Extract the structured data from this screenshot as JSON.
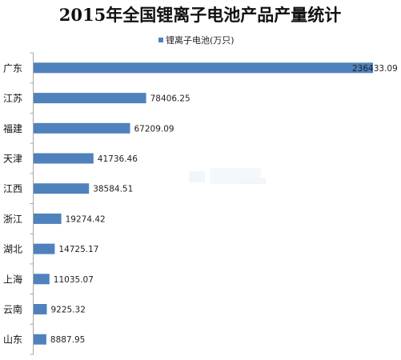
{
  "chart_data": {
    "type": "bar",
    "orientation": "horizontal",
    "title": "2015年全国锂离子电池产品产量统计",
    "legend": "top",
    "grid": false,
    "categories": [
      "广东",
      "江苏",
      "福建",
      "天津",
      "江西",
      "浙江",
      "湖北",
      "上海",
      "云南",
      "山东"
    ],
    "series": [
      {
        "name": "锂离子电池(万只)",
        "color": "#4f81bd",
        "values": [
          236433.09,
          78406.25,
          67209.09,
          41736.46,
          38584.51,
          19274.42,
          14725.17,
          11035.07,
          9225.32,
          8887.95
        ],
        "labels": [
          "236433.09",
          "78406.25",
          "67209.09",
          "41736.46",
          "38584.51",
          "19274.42",
          "14725.17",
          "11035.07",
          "9225.32",
          "8887.95"
        ]
      }
    ],
    "xlim": [
      0,
      236433.09
    ]
  }
}
